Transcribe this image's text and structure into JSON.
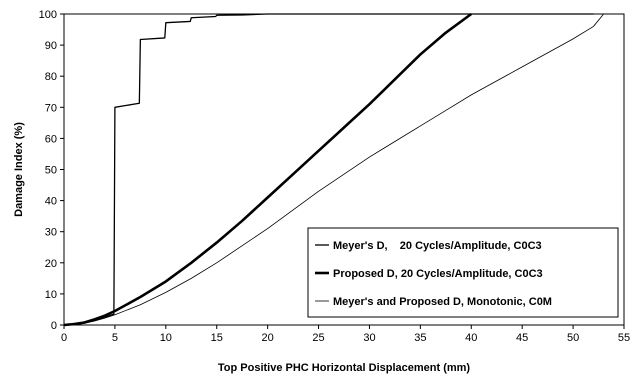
{
  "chart_data": {
    "type": "line",
    "title": "",
    "xlabel": "Top Positive PHC Horizontal Displacement (mm)",
    "ylabel": "Damage Index (%)",
    "xlim": [
      0,
      55
    ],
    "ylim": [
      0,
      100
    ],
    "xticks": [
      0,
      5,
      10,
      15,
      20,
      25,
      30,
      35,
      40,
      45,
      50,
      55
    ],
    "yticks": [
      0,
      10,
      20,
      30,
      40,
      50,
      60,
      70,
      80,
      90,
      100
    ],
    "grid": false,
    "legend_position": "bottom-right",
    "series": [
      {
        "name": "Meyer's D,    20 Cycles/Amplitude, C0C3",
        "color": "#000000",
        "style": "thin",
        "points": [
          [
            0,
            0
          ],
          [
            1,
            0.2
          ],
          [
            2,
            0.6
          ],
          [
            3,
            1.4
          ],
          [
            4,
            2.5
          ],
          [
            4.9,
            3.5
          ],
          [
            5,
            70
          ],
          [
            7.4,
            71.3
          ],
          [
            7.5,
            91.8
          ],
          [
            9.9,
            92.3
          ],
          [
            10,
            97.2
          ],
          [
            12.4,
            97.6
          ],
          [
            12.5,
            98.8
          ],
          [
            14.9,
            99.2
          ],
          [
            15,
            99.6
          ],
          [
            17.5,
            99.7
          ],
          [
            20,
            100
          ],
          [
            52,
            100
          ]
        ]
      },
      {
        "name": "Proposed D, 20 Cycles/Amplitude, C0C3",
        "color": "#000000",
        "style": "thick",
        "points": [
          [
            0,
            0
          ],
          [
            1,
            0.3
          ],
          [
            2,
            0.8
          ],
          [
            3,
            1.8
          ],
          [
            4,
            3
          ],
          [
            5,
            4.5
          ],
          [
            7.5,
            9
          ],
          [
            10,
            14
          ],
          [
            12.5,
            20
          ],
          [
            15,
            26.5
          ],
          [
            17.5,
            33.5
          ],
          [
            20,
            41
          ],
          [
            22.5,
            48.5
          ],
          [
            25,
            56
          ],
          [
            27.5,
            63.5
          ],
          [
            30,
            71
          ],
          [
            32.5,
            79
          ],
          [
            35,
            87
          ],
          [
            37.5,
            94
          ],
          [
            40,
            100
          ]
        ]
      },
      {
        "name": "Meyer's and Proposed D, Monotonic, C0M",
        "color": "#000000",
        "style": "hairline",
        "points": [
          [
            0,
            0
          ],
          [
            1,
            0.2
          ],
          [
            2,
            0.6
          ],
          [
            3,
            1.3
          ],
          [
            4,
            2.2
          ],
          [
            5,
            3.3
          ],
          [
            7.5,
            6.5
          ],
          [
            10,
            10.5
          ],
          [
            12.5,
            15
          ],
          [
            15,
            20
          ],
          [
            17.5,
            25.5
          ],
          [
            20,
            31
          ],
          [
            22.5,
            37
          ],
          [
            25,
            43
          ],
          [
            27.5,
            48.5
          ],
          [
            30,
            54
          ],
          [
            32.5,
            59
          ],
          [
            35,
            64
          ],
          [
            37.5,
            69
          ],
          [
            40,
            74
          ],
          [
            42.5,
            78.5
          ],
          [
            45,
            83
          ],
          [
            47.5,
            87.5
          ],
          [
            50,
            92
          ],
          [
            52,
            96
          ],
          [
            53,
            100
          ]
        ]
      }
    ]
  }
}
